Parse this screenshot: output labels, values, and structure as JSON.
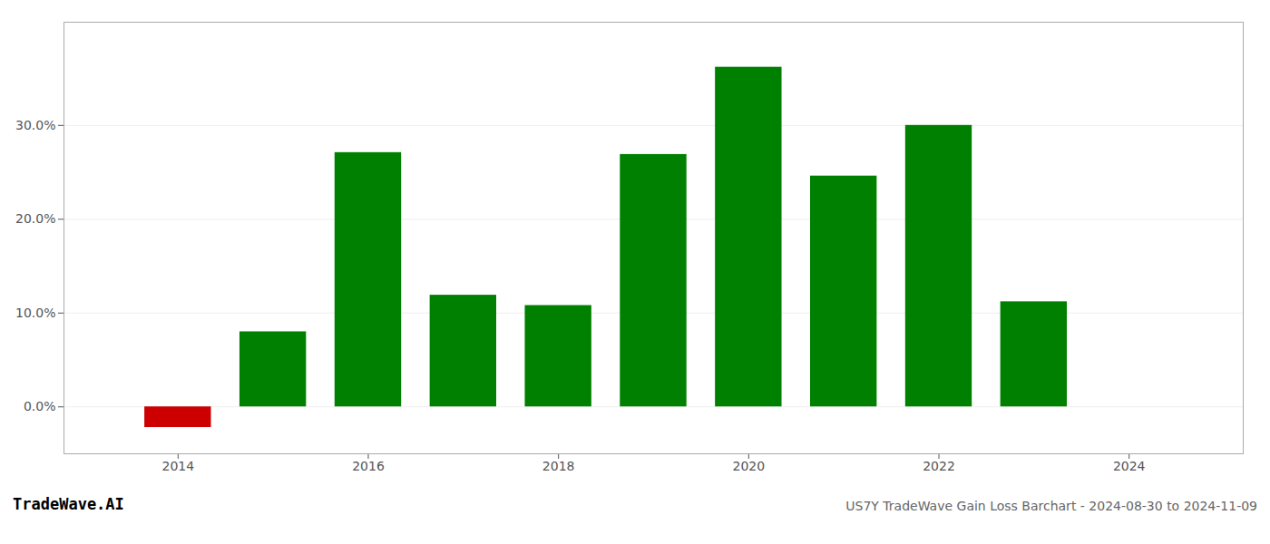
{
  "chart_data": {
    "type": "bar",
    "x": [
      2014,
      2015,
      2016,
      2017,
      2018,
      2019,
      2020,
      2021,
      2022,
      2023
    ],
    "values": [
      -0.022,
      0.08,
      0.271,
      0.119,
      0.108,
      0.269,
      0.362,
      0.246,
      0.3,
      0.112
    ],
    "colors": [
      "#cc0000",
      "#008000",
      "#008000",
      "#008000",
      "#008000",
      "#008000",
      "#008000",
      "#008000",
      "#008000",
      "#008000"
    ],
    "xlim": [
      2012.8,
      2025.2
    ],
    "xticks": [
      2014,
      2016,
      2018,
      2020,
      2022,
      2024
    ],
    "ylim": [
      -0.05,
      0.41
    ],
    "yticks": [
      {
        "value": 0.0,
        "label": "0.0%"
      },
      {
        "value": 0.1,
        "label": "10.0%"
      },
      {
        "value": 0.2,
        "label": "20.0%"
      },
      {
        "value": 0.3,
        "label": "30.0%"
      }
    ],
    "grid": true,
    "annotations": [
      "TradeWave.AI",
      "US7Y TradeWave Gain Loss Barchart - 2024-08-30 to 2024-11-09"
    ]
  }
}
